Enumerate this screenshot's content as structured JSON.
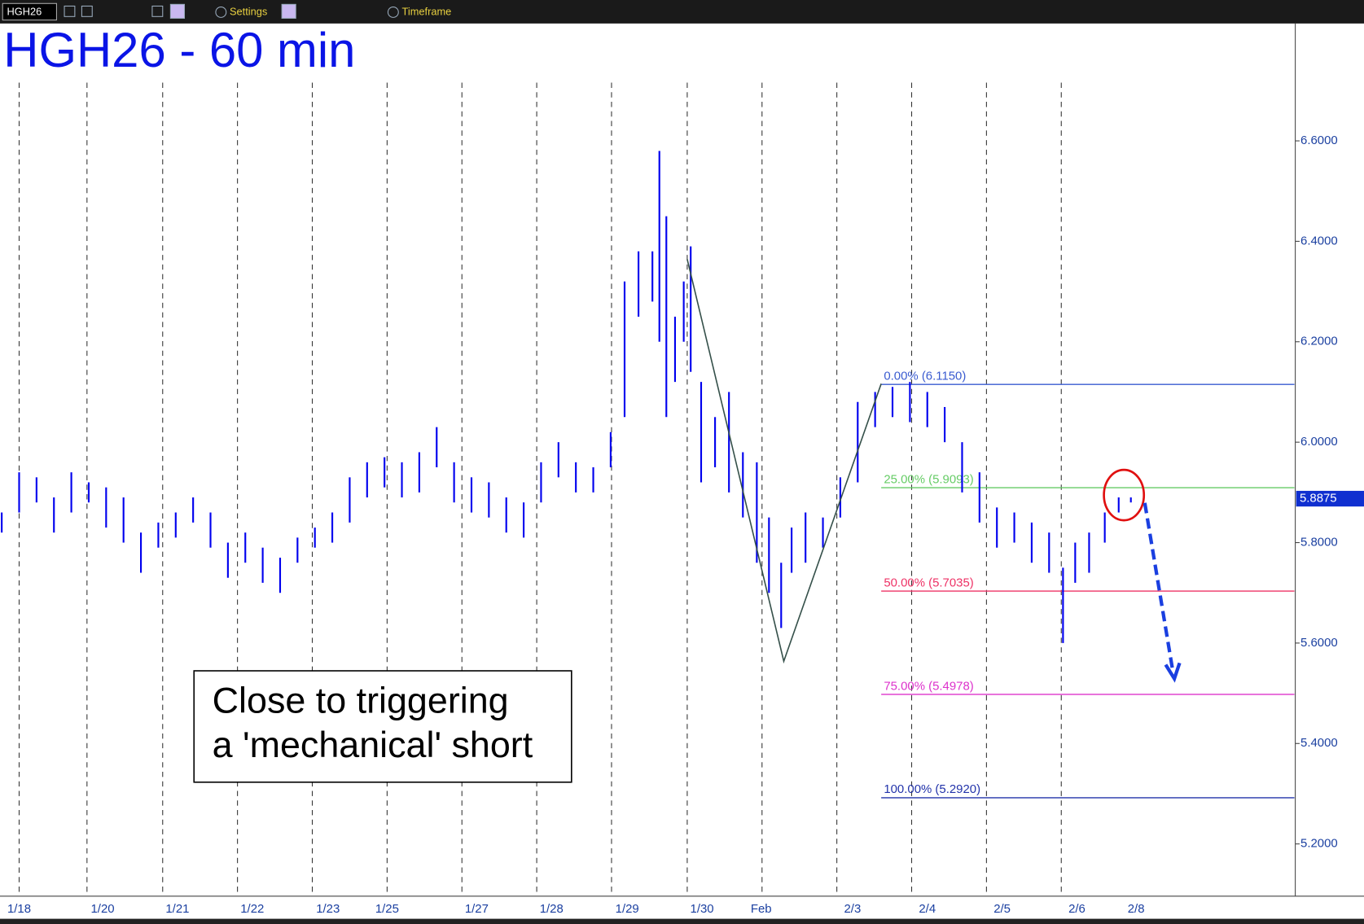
{
  "toolbar": {
    "symbol": "HGH26",
    "settings": "Settings",
    "timeframe": "Timeframe"
  },
  "chart_data": {
    "type": "range-bar",
    "title": "HGH26 - 60 min",
    "color": "#0000ee",
    "categories": [
      "1/18",
      "1/20",
      "1/21",
      "1/22",
      "1/23",
      "1/25",
      "1/27",
      "1/28",
      "1/29",
      "1/30",
      "Feb",
      "2/3",
      "2/4",
      "2/5",
      "2/6",
      "2/8"
    ],
    "high": [
      5.86,
      5.94,
      5.93,
      5.89,
      5.94,
      5.92,
      5.91,
      5.89,
      5.82,
      5.84,
      5.86,
      5.89,
      5.86,
      5.8,
      5.82,
      5.79,
      5.77,
      5.81,
      5.83,
      5.86,
      5.93,
      5.96,
      5.97,
      5.96,
      5.98,
      6.03,
      5.96,
      5.93,
      5.92,
      5.89,
      5.88,
      5.96,
      6.0,
      5.96,
      5.95,
      6.02,
      6.32,
      6.38,
      6.38,
      6.58,
      6.45,
      6.25,
      6.32,
      6.39,
      6.12,
      6.05,
      6.1,
      5.98,
      5.96,
      5.85,
      5.76,
      5.83,
      5.86,
      5.85,
      5.93,
      6.08,
      6.1,
      6.11,
      6.12,
      6.1,
      6.07,
      6.0,
      5.94,
      5.87,
      5.86,
      5.84,
      5.82,
      5.75,
      5.8,
      5.82,
      5.86,
      5.89,
      5.89
    ],
    "low": [
      5.82,
      5.86,
      5.88,
      5.82,
      5.86,
      5.88,
      5.83,
      5.8,
      5.74,
      5.79,
      5.81,
      5.84,
      5.79,
      5.73,
      5.76,
      5.72,
      5.7,
      5.76,
      5.79,
      5.8,
      5.84,
      5.89,
      5.91,
      5.89,
      5.9,
      5.95,
      5.88,
      5.86,
      5.85,
      5.82,
      5.81,
      5.88,
      5.93,
      5.9,
      5.9,
      5.95,
      6.05,
      6.25,
      6.28,
      6.2,
      6.05,
      6.12,
      6.2,
      6.14,
      5.92,
      5.95,
      5.9,
      5.85,
      5.76,
      5.7,
      5.63,
      5.74,
      5.76,
      5.79,
      5.85,
      5.92,
      6.03,
      6.05,
      6.04,
      6.03,
      6.0,
      5.9,
      5.84,
      5.79,
      5.8,
      5.76,
      5.74,
      5.6,
      5.72,
      5.74,
      5.8,
      5.86,
      5.88
    ],
    "ylim": [
      5.096,
      6.832
    ],
    "yticks": [
      {
        "value": 5.2,
        "label": "5.2000"
      },
      {
        "value": 5.4,
        "label": "5.4000"
      },
      {
        "value": 5.6,
        "label": "5.6000"
      },
      {
        "value": 5.8,
        "label": "5.8000"
      },
      {
        "value": 6.0,
        "label": "6.0000"
      },
      {
        "value": 6.2,
        "label": "6.2000"
      },
      {
        "value": 6.4,
        "label": "6.4000"
      },
      {
        "value": 6.6,
        "label": "6.6000"
      }
    ],
    "last_price": {
      "value": 5.8875,
      "label": "5.8875"
    },
    "fib_levels": [
      {
        "label": "0.00% (6.1150)",
        "value": 6.115,
        "color": "#3a5bd0"
      },
      {
        "label": "25.00% (5.9093)",
        "value": 5.9093,
        "color": "#66cc66"
      },
      {
        "label": "50.00% (5.7035)",
        "value": 5.7035,
        "color": "#ee3366"
      },
      {
        "label": "75.00% (5.4978)",
        "value": 5.4978,
        "color": "#dd33cc"
      },
      {
        "label": "100.00% (5.2920)",
        "value": 5.292,
        "color": "#2233aa"
      }
    ],
    "annotation": [
      "Close to triggering",
      "a 'mechanical' short"
    ]
  }
}
